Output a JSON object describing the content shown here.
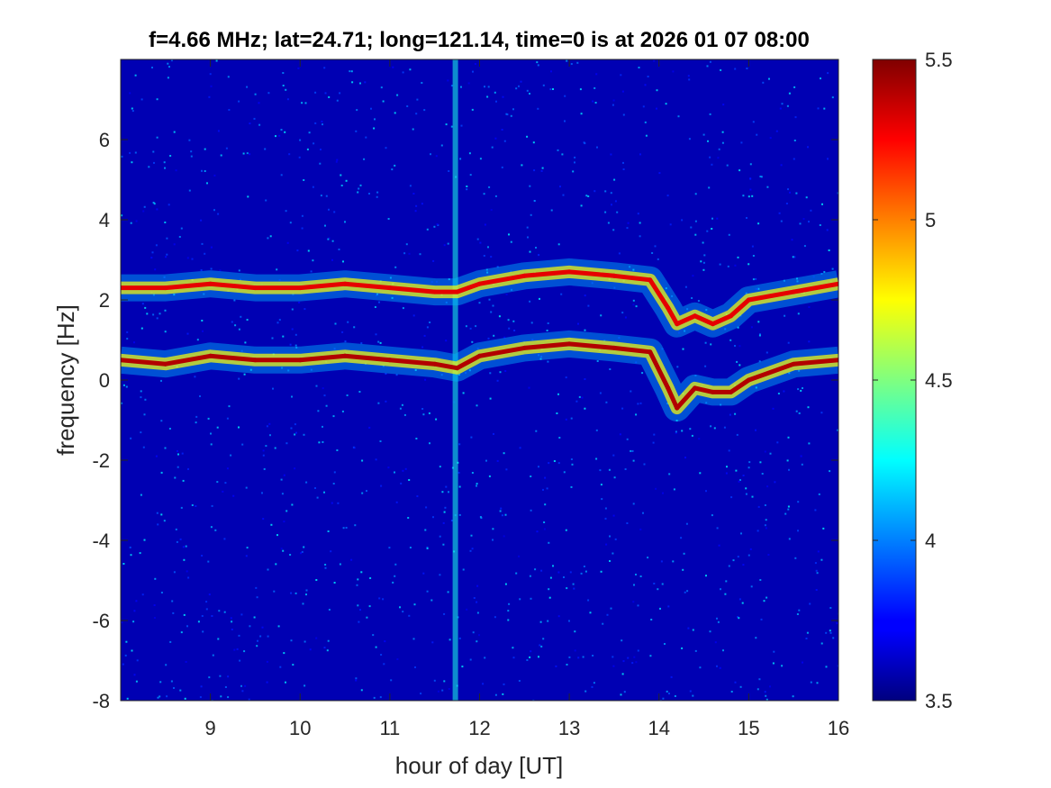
{
  "chart_data": {
    "type": "heatmap",
    "title": "f=4.66 MHz;  lat=24.71; long=121.14, time=0 is at 2026 01 07 08:00",
    "xlabel": "hour of day [UT]",
    "ylabel": "frequency [Hz]",
    "xlim": [
      8,
      16
    ],
    "ylim": [
      -8,
      8
    ],
    "xticks": [
      9,
      10,
      11,
      12,
      13,
      14,
      15,
      16
    ],
    "xtick_labels": [
      "9",
      "10",
      "11",
      "12",
      "13",
      "14",
      "15",
      "16"
    ],
    "yticks": [
      -8,
      -6,
      -4,
      -2,
      0,
      2,
      4,
      6
    ],
    "ytick_labels": [
      "-8",
      "-6",
      "-4",
      "-2",
      "0",
      "2",
      "4",
      "6"
    ],
    "colorbar": {
      "colormap": "jet",
      "range": [
        3.5,
        5.5
      ],
      "ticks": [
        3.5,
        4,
        4.5,
        5,
        5.5
      ],
      "tick_labels": [
        "3.5",
        "4",
        "4.5",
        "5",
        "5.5"
      ]
    },
    "background_level": 3.6,
    "vertical_stripe": {
      "x": 11.73,
      "level": 4.3
    },
    "series": [
      {
        "x": [
          8.0,
          8.5,
          9.0,
          9.5,
          10.0,
          10.5,
          11.0,
          11.5,
          11.75,
          12.0,
          12.5,
          13.0,
          13.5,
          13.9,
          14.1,
          14.2,
          14.4,
          14.6,
          14.8,
          15.0,
          15.5,
          16.0
        ],
        "y": [
          2.3,
          2.3,
          2.4,
          2.3,
          2.3,
          2.4,
          2.3,
          2.2,
          2.2,
          2.4,
          2.6,
          2.7,
          2.6,
          2.5,
          1.8,
          1.4,
          1.6,
          1.4,
          1.6,
          2.0,
          2.2,
          2.4
        ],
        "level": 5.3
      },
      {
        "x": [
          8.0,
          8.5,
          9.0,
          9.5,
          10.0,
          10.5,
          11.0,
          11.5,
          11.75,
          12.0,
          12.5,
          13.0,
          13.5,
          13.9,
          14.1,
          14.2,
          14.4,
          14.6,
          14.8,
          15.0,
          15.5,
          16.0
        ],
        "y": [
          0.5,
          0.4,
          0.6,
          0.5,
          0.5,
          0.6,
          0.5,
          0.4,
          0.3,
          0.6,
          0.8,
          0.9,
          0.8,
          0.7,
          -0.2,
          -0.7,
          -0.2,
          -0.3,
          -0.3,
          0.0,
          0.4,
          0.5
        ],
        "level": 5.4
      }
    ]
  }
}
